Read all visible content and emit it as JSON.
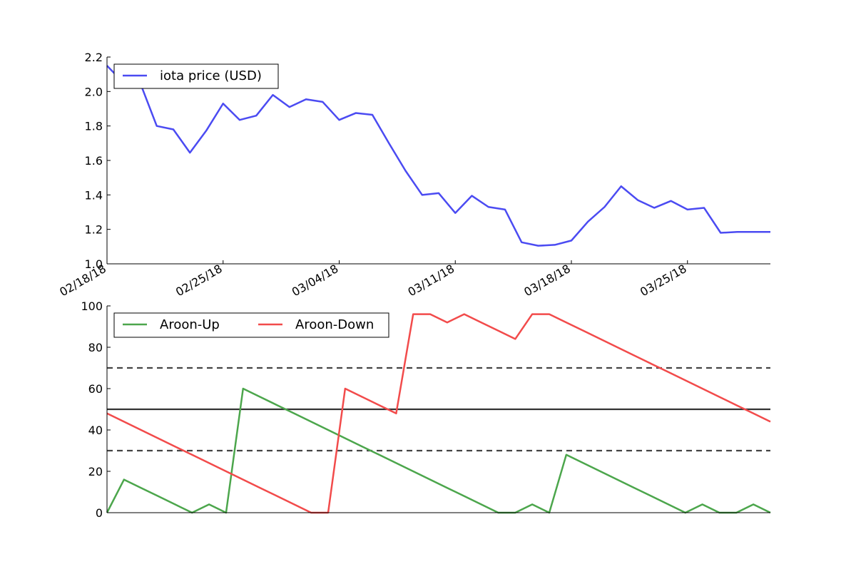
{
  "colors": {
    "price": "#4b4bf2",
    "aroon_up": "#4ca64c",
    "aroon_down": "#f24b4b",
    "threshold": "#444444",
    "midline": "#333333",
    "axis": "#000000",
    "background": "#ffffff"
  },
  "chart_data": [
    {
      "type": "line",
      "x_type": "date",
      "dates": [
        "2018-02-18",
        "2018-02-19",
        "2018-02-20",
        "2018-02-21",
        "2018-02-22",
        "2018-02-23",
        "2018-02-24",
        "2018-02-25",
        "2018-02-26",
        "2018-02-27",
        "2018-02-28",
        "2018-03-01",
        "2018-03-02",
        "2018-03-03",
        "2018-03-04",
        "2018-03-05",
        "2018-03-06",
        "2018-03-07",
        "2018-03-08",
        "2018-03-09",
        "2018-03-10",
        "2018-03-11",
        "2018-03-12",
        "2018-03-13",
        "2018-03-14",
        "2018-03-15",
        "2018-03-16",
        "2018-03-17",
        "2018-03-18",
        "2018-03-19",
        "2018-03-20",
        "2018-03-21",
        "2018-03-22",
        "2018-03-23",
        "2018-03-24",
        "2018-03-25",
        "2018-03-26",
        "2018-03-27",
        "2018-03-28",
        "2018-03-29",
        "2018-03-30"
      ],
      "series": [
        {
          "name": "iota price (USD)",
          "values": [
            2.15,
            2.05,
            2.05,
            1.8,
            1.78,
            1.645,
            1.775,
            1.93,
            1.835,
            1.86,
            1.98,
            1.91,
            1.955,
            1.94,
            1.835,
            1.875,
            1.865,
            1.7,
            1.54,
            1.4,
            1.41,
            1.295,
            1.395,
            1.33,
            1.315,
            1.125,
            1.105,
            1.11,
            1.135,
            1.245,
            1.33,
            1.45,
            1.37,
            1.325,
            1.365,
            1.315,
            1.325,
            1.18,
            1.185,
            1.185,
            1.185
          ]
        }
      ],
      "xticks": [
        "02/18/18",
        "02/25/18",
        "03/04/18",
        "03/11/18",
        "03/18/18",
        "03/25/18"
      ],
      "yticks": [
        "1.0",
        "1.2",
        "1.4",
        "1.6",
        "1.8",
        "2.0",
        "2.2"
      ],
      "ylim": [
        1.0,
        2.2
      ],
      "legend": {
        "placement": "top-left",
        "entries": [
          "iota price (USD)"
        ]
      },
      "grid": false
    },
    {
      "type": "line",
      "x_type": "date",
      "series": [
        {
          "name": "Aroon-Up",
          "values": [
            0,
            16,
            12,
            8,
            4,
            0,
            4,
            0,
            60,
            56,
            52,
            48,
            44,
            40,
            36,
            32,
            28,
            24,
            20,
            16,
            12,
            8,
            4,
            0,
            0,
            4,
            0,
            28,
            24,
            20,
            16,
            12,
            8,
            4,
            0,
            4,
            0,
            0,
            4,
            0
          ]
        },
        {
          "name": "Aroon-Down",
          "values": [
            48,
            44,
            40,
            36,
            32,
            28,
            24,
            20,
            16,
            12,
            8,
            4,
            0,
            0,
            60,
            56,
            52,
            48,
            96,
            96,
            92,
            96,
            92,
            88,
            84,
            96,
            96,
            92,
            88,
            84,
            80,
            76,
            72,
            68,
            64,
            60,
            56,
            52,
            48,
            44
          ]
        }
      ],
      "reference_lines": [
        {
          "y": 70,
          "style": "dashed"
        },
        {
          "y": 50,
          "style": "solid"
        },
        {
          "y": 30,
          "style": "dashed"
        }
      ],
      "yticks": [
        "0",
        "20",
        "40",
        "60",
        "80",
        "100"
      ],
      "ylim": [
        0,
        100
      ],
      "legend": {
        "placement": "top-left",
        "entries": [
          "Aroon-Up",
          "Aroon-Down"
        ]
      },
      "grid": false
    }
  ]
}
